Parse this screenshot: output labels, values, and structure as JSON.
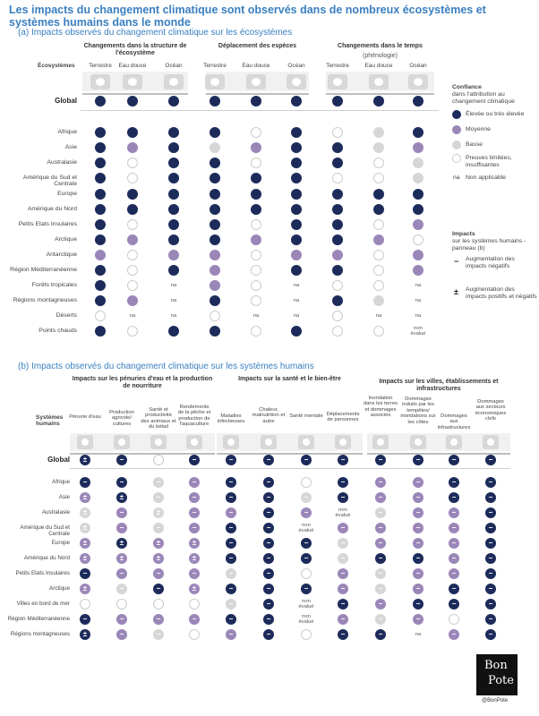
{
  "title": "Les impacts du changement climatique sont observés dans de nombreux écosystèmes et systèmes humains dans le monde",
  "panel_a": {
    "subtitle": "(a) Impacts observés du changement climatique sur les écosystèmes",
    "ecosystems_label": "Écosystèmes",
    "groups": [
      {
        "title": "Changements dans la structure de l'écosystème",
        "subtitle": ""
      },
      {
        "title": "Déplacement des espèces",
        "subtitle": ""
      },
      {
        "title": "Changements dans le temps",
        "subtitle": "(phénologie)"
      }
    ],
    "columns": [
      "Terrestre",
      "Eau douce",
      "Océan",
      "Terrestre",
      "Eau douce",
      "Océan",
      "Terrestre",
      "Eau douce",
      "Océan"
    ],
    "column_icons": [
      "terrestrial-icon",
      "freshwater-icon",
      "ocean-icon",
      "terrestrial-icon",
      "freshwater-icon",
      "ocean-icon",
      "terrestrial-icon",
      "freshwater-icon",
      "ocean-icon"
    ],
    "rows": [
      {
        "label": "Global",
        "cells": [
          "h",
          "h",
          "h",
          "h",
          "h",
          "h",
          "h",
          "h",
          "h"
        ]
      },
      {
        "label": "Afrique",
        "cells": [
          "h",
          "h",
          "h",
          "h",
          "e",
          "h",
          "e",
          "l",
          "h"
        ]
      },
      {
        "label": "Asie",
        "cells": [
          "h",
          "m",
          "h",
          "l",
          "m",
          "h",
          "h",
          "l",
          "m"
        ]
      },
      {
        "label": "Australasie",
        "cells": [
          "h",
          "e",
          "h",
          "h",
          "e",
          "h",
          "h",
          "e",
          "l"
        ]
      },
      {
        "label": "Amérique du Sud et Centrale",
        "cells": [
          "h",
          "e",
          "h",
          "h",
          "h",
          "h",
          "e",
          "e",
          "l"
        ]
      },
      {
        "label": "Europe",
        "cells": [
          "h",
          "h",
          "h",
          "h",
          "h",
          "h",
          "h",
          "h",
          "h"
        ]
      },
      {
        "label": "Amérique du Nord",
        "cells": [
          "h",
          "h",
          "h",
          "h",
          "h",
          "h",
          "h",
          "h",
          "h"
        ]
      },
      {
        "label": "Petits Etats Insulaires",
        "cells": [
          "h",
          "e",
          "h",
          "h",
          "e",
          "h",
          "h",
          "e",
          "m"
        ]
      },
      {
        "label": "Arctique",
        "cells": [
          "h",
          "m",
          "h",
          "h",
          "m",
          "h",
          "h",
          "m",
          "e"
        ]
      },
      {
        "label": "Antarctique",
        "cells": [
          "m",
          "e",
          "m",
          "m",
          "e",
          "m",
          "m",
          "e",
          "m"
        ]
      },
      {
        "label": "Région Méditerranéenne",
        "cells": [
          "h",
          "e",
          "h",
          "m",
          "e",
          "h",
          "h",
          "e",
          "m"
        ]
      },
      {
        "label": "Forêts tropicales",
        "cells": [
          "h",
          "e",
          "na",
          "m",
          "e",
          "na",
          "e",
          "e",
          "na"
        ]
      },
      {
        "label": "Régions montagneuses",
        "cells": [
          "h",
          "m",
          "na",
          "h",
          "e",
          "na",
          "h",
          "l",
          "na"
        ]
      },
      {
        "label": "Déserts",
        "cells": [
          "e",
          "na",
          "na",
          "e",
          "na",
          "na",
          "e",
          "na",
          "na"
        ]
      },
      {
        "label": "Points chauds",
        "cells": [
          "h",
          "e",
          "h",
          "h",
          "e",
          "h",
          "e",
          "e",
          "ne"
        ]
      }
    ],
    "na_text": "na",
    "not_evaluated_text": "non évalué",
    "legend": {
      "title": "Confiance",
      "subtitle": "dans l'attribution au changement climatique",
      "items": [
        {
          "key": "h",
          "label": "Élevée ou très élevée"
        },
        {
          "key": "m",
          "label": "Moyenne"
        },
        {
          "key": "l",
          "label": "Basse"
        },
        {
          "key": "e",
          "label": "Preuves limitées, insuffisantes"
        },
        {
          "key": "na",
          "label": "Non applicable"
        }
      ],
      "impacts_title": "Impacts",
      "impacts_subtitle": "sur les systèmes humains - panneau (b)",
      "impact_items": [
        {
          "symbol": "−",
          "label": "Augmentation des impacts négatifs"
        },
        {
          "symbol": "±",
          "label": "Augmentation des impacts positifs et négatifs"
        }
      ]
    },
    "colors": {
      "h": "#1c2b5a",
      "m": "#9b86b8",
      "l": "#d6d6d6",
      "e": "#ffffff"
    }
  },
  "panel_b": {
    "subtitle": "(b) Impacts observés du changement climatique sur les systèmes humains",
    "systems_label": "Systèmes humains",
    "groups": [
      {
        "title": "Impacts sur les pénuries d'eau et la production de nourriture"
      },
      {
        "title": "Impacts sur la santé et le bien-être"
      },
      {
        "title": "Impacts sur les villes, établissements et infrastructures"
      }
    ],
    "columns": [
      "Pénurie d'eau",
      "Production agricole/ cultures",
      "Santé et productivité des animaux et du bétail",
      "Rendements de la pêche et production de l'aquaculture",
      "Maladies infectieuses",
      "Chaleur, malnutrition et autre",
      "Santé mentale",
      "Déplacements de personnes",
      "Inondation dans les terres et dommages associés",
      "Dommages induits par les tempêtes/ inondations sur les côtes",
      "Dommages aux infrastructures",
      "Dommages aux secteurs économiques clefs"
    ],
    "column_icons": [
      "water-drop-icon",
      "crop-icon",
      "livestock-icon",
      "fish-icon",
      "virus-icon",
      "thermometer-icon",
      "head-icon",
      "people-icon",
      "flood-icon",
      "storm-icon",
      "infrastructure-icon",
      "economy-icon"
    ],
    "rows": [
      {
        "label": "Global",
        "cells": [
          "h±",
          "h−",
          "e",
          "h−",
          "h−",
          "h−",
          "h−",
          "h−",
          "h−",
          "h−",
          "h−",
          "h−"
        ]
      },
      {
        "label": "Afrique",
        "cells": [
          "h−",
          "h−",
          "l−",
          "m−",
          "h−",
          "h−",
          "e",
          "h−",
          "m−",
          "m−",
          "h−",
          "h−"
        ]
      },
      {
        "label": "Asie",
        "cells": [
          "m±",
          "h±",
          "l−",
          "m−",
          "h−",
          "h−",
          "l−",
          "h−",
          "m−",
          "m−",
          "h−",
          "h−"
        ]
      },
      {
        "label": "Australasie",
        "cells": [
          "l±",
          "m−",
          "l±",
          "m−",
          "m−",
          "h−",
          "m−",
          "ne",
          "l−",
          "m−",
          "m−",
          "h−"
        ]
      },
      {
        "label": "Amérique du Sud et Centrale",
        "cells": [
          "l±",
          "m−",
          "l−",
          "m−",
          "h−",
          "h−",
          "ne",
          "m−",
          "m−",
          "m−",
          "m−",
          "h−"
        ]
      },
      {
        "label": "Europe",
        "cells": [
          "m±",
          "h±",
          "m±",
          "m±",
          "h−",
          "h−",
          "h−",
          "l−",
          "m−",
          "m−",
          "m−",
          "h−"
        ]
      },
      {
        "label": "Amérique du Nord",
        "cells": [
          "m±",
          "m±",
          "m±",
          "m±",
          "h−",
          "h−",
          "h−",
          "l−",
          "h−",
          "h−",
          "m−",
          "h−"
        ]
      },
      {
        "label": "Petits Etats Insulaires",
        "cells": [
          "h−",
          "m−",
          "m−",
          "m−",
          "l−",
          "h−",
          "e",
          "m−",
          "l−",
          "m−",
          "m−",
          "h−"
        ]
      },
      {
        "label": "Arctique",
        "cells": [
          "m±",
          "l−",
          "h−",
          "m±",
          "h−",
          "h−",
          "h−",
          "m−",
          "l−",
          "m−",
          "h−",
          "h−"
        ]
      },
      {
        "label": "Villes en bord de mer",
        "cells": [
          "e",
          "e",
          "e",
          "e",
          "l−",
          "h−",
          "ne",
          "h−",
          "m−",
          "h−",
          "h−",
          "h−"
        ]
      },
      {
        "label": "Région Méditerranéenne",
        "cells": [
          "h−",
          "m−",
          "m−",
          "m−",
          "h−",
          "h−",
          "ne",
          "m−",
          "l−",
          "m−",
          "e",
          "h−"
        ]
      },
      {
        "label": "Régions montagneuses",
        "cells": [
          "h±",
          "m−",
          "l−",
          "e",
          "m−",
          "h−",
          "e",
          "h−",
          "h−",
          "na",
          "m−",
          "h−"
        ]
      }
    ],
    "na_text": "na",
    "not_evaluated_text": "non évalué"
  },
  "credit": "@BonPote",
  "logo_text": "Bon Pote"
}
